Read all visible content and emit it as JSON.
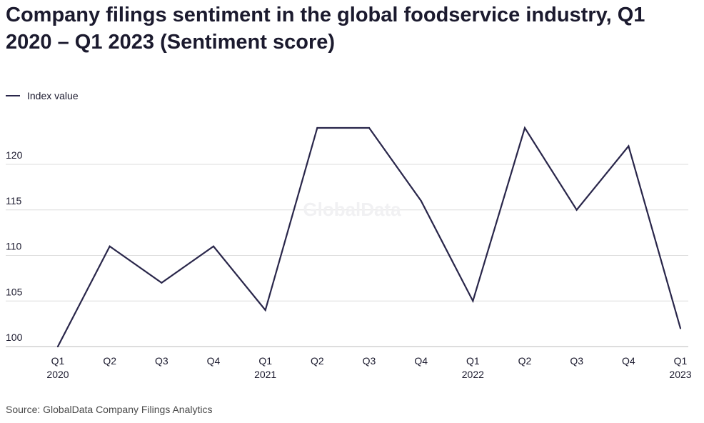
{
  "title": "Company filings sentiment in the global foodservice industry, Q1 2020 – Q1 2023 (Sentiment score)",
  "source": "Source: GlobalData Company Filings Analytics",
  "watermark": "GlobalData",
  "colors": {
    "line": "#29264a",
    "grid": "#dddddd",
    "axis": "#bbbbbb",
    "text": "#1b1a2e"
  },
  "chart_data": {
    "type": "line",
    "title": "Company filings sentiment in the global foodservice industry, Q1 2020 – Q1 2023 (Sentiment score)",
    "categories": [
      "Q1 2020",
      "Q2",
      "Q3",
      "Q4",
      "Q1 2021",
      "Q2",
      "Q3",
      "Q4",
      "Q1 2022",
      "Q2",
      "Q3",
      "Q4",
      "Q1 2023"
    ],
    "x_ticks": [
      {
        "q": "Q1",
        "y": "2020"
      },
      {
        "q": "Q2",
        "y": ""
      },
      {
        "q": "Q3",
        "y": ""
      },
      {
        "q": "Q4",
        "y": ""
      },
      {
        "q": "Q1",
        "y": "2021"
      },
      {
        "q": "Q2",
        "y": ""
      },
      {
        "q": "Q3",
        "y": ""
      },
      {
        "q": "Q4",
        "y": ""
      },
      {
        "q": "Q1",
        "y": "2022"
      },
      {
        "q": "Q2",
        "y": ""
      },
      {
        "q": "Q3",
        "y": ""
      },
      {
        "q": "Q4",
        "y": ""
      },
      {
        "q": "Q1",
        "y": "2023"
      }
    ],
    "series": [
      {
        "name": "Index value",
        "values": [
          100,
          111,
          107,
          111,
          104,
          124,
          124,
          116,
          105,
          124,
          115,
          122,
          102
        ]
      }
    ],
    "y_ticks": [
      100,
      105,
      110,
      115,
      120
    ],
    "ylim": [
      100,
      125
    ],
    "grid": true,
    "legend": "top-left"
  }
}
